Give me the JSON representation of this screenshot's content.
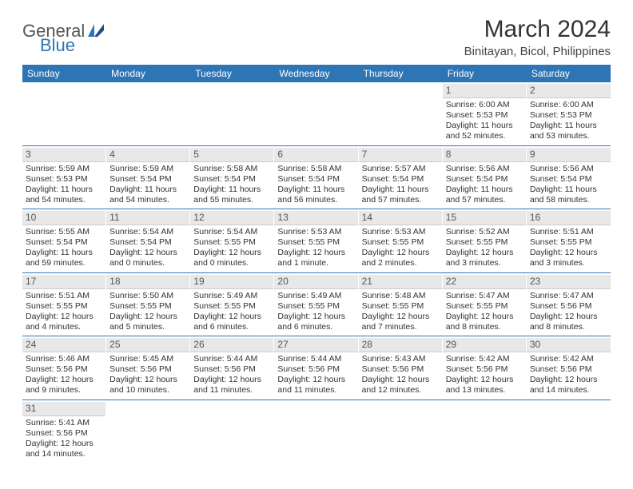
{
  "logo": {
    "text1": "General",
    "text2": "Blue"
  },
  "title": "March 2024",
  "location": "Binitayan, Bicol, Philippines",
  "colors": {
    "header_bg": "#2e75b5",
    "header_text": "#ffffff",
    "date_bg": "#e8e8e8",
    "row_border": "#2e75b5"
  },
  "day_names": [
    "Sunday",
    "Monday",
    "Tuesday",
    "Wednesday",
    "Thursday",
    "Friday",
    "Saturday"
  ],
  "weeks": [
    [
      {
        "date": "",
        "sunrise": "",
        "sunset": "",
        "daylight": ""
      },
      {
        "date": "",
        "sunrise": "",
        "sunset": "",
        "daylight": ""
      },
      {
        "date": "",
        "sunrise": "",
        "sunset": "",
        "daylight": ""
      },
      {
        "date": "",
        "sunrise": "",
        "sunset": "",
        "daylight": ""
      },
      {
        "date": "",
        "sunrise": "",
        "sunset": "",
        "daylight": ""
      },
      {
        "date": "1",
        "sunrise": "Sunrise: 6:00 AM",
        "sunset": "Sunset: 5:53 PM",
        "daylight": "Daylight: 11 hours and 52 minutes."
      },
      {
        "date": "2",
        "sunrise": "Sunrise: 6:00 AM",
        "sunset": "Sunset: 5:53 PM",
        "daylight": "Daylight: 11 hours and 53 minutes."
      }
    ],
    [
      {
        "date": "3",
        "sunrise": "Sunrise: 5:59 AM",
        "sunset": "Sunset: 5:53 PM",
        "daylight": "Daylight: 11 hours and 54 minutes."
      },
      {
        "date": "4",
        "sunrise": "Sunrise: 5:59 AM",
        "sunset": "Sunset: 5:54 PM",
        "daylight": "Daylight: 11 hours and 54 minutes."
      },
      {
        "date": "5",
        "sunrise": "Sunrise: 5:58 AM",
        "sunset": "Sunset: 5:54 PM",
        "daylight": "Daylight: 11 hours and 55 minutes."
      },
      {
        "date": "6",
        "sunrise": "Sunrise: 5:58 AM",
        "sunset": "Sunset: 5:54 PM",
        "daylight": "Daylight: 11 hours and 56 minutes."
      },
      {
        "date": "7",
        "sunrise": "Sunrise: 5:57 AM",
        "sunset": "Sunset: 5:54 PM",
        "daylight": "Daylight: 11 hours and 57 minutes."
      },
      {
        "date": "8",
        "sunrise": "Sunrise: 5:56 AM",
        "sunset": "Sunset: 5:54 PM",
        "daylight": "Daylight: 11 hours and 57 minutes."
      },
      {
        "date": "9",
        "sunrise": "Sunrise: 5:56 AM",
        "sunset": "Sunset: 5:54 PM",
        "daylight": "Daylight: 11 hours and 58 minutes."
      }
    ],
    [
      {
        "date": "10",
        "sunrise": "Sunrise: 5:55 AM",
        "sunset": "Sunset: 5:54 PM",
        "daylight": "Daylight: 11 hours and 59 minutes."
      },
      {
        "date": "11",
        "sunrise": "Sunrise: 5:54 AM",
        "sunset": "Sunset: 5:54 PM",
        "daylight": "Daylight: 12 hours and 0 minutes."
      },
      {
        "date": "12",
        "sunrise": "Sunrise: 5:54 AM",
        "sunset": "Sunset: 5:55 PM",
        "daylight": "Daylight: 12 hours and 0 minutes."
      },
      {
        "date": "13",
        "sunrise": "Sunrise: 5:53 AM",
        "sunset": "Sunset: 5:55 PM",
        "daylight": "Daylight: 12 hours and 1 minute."
      },
      {
        "date": "14",
        "sunrise": "Sunrise: 5:53 AM",
        "sunset": "Sunset: 5:55 PM",
        "daylight": "Daylight: 12 hours and 2 minutes."
      },
      {
        "date": "15",
        "sunrise": "Sunrise: 5:52 AM",
        "sunset": "Sunset: 5:55 PM",
        "daylight": "Daylight: 12 hours and 3 minutes."
      },
      {
        "date": "16",
        "sunrise": "Sunrise: 5:51 AM",
        "sunset": "Sunset: 5:55 PM",
        "daylight": "Daylight: 12 hours and 3 minutes."
      }
    ],
    [
      {
        "date": "17",
        "sunrise": "Sunrise: 5:51 AM",
        "sunset": "Sunset: 5:55 PM",
        "daylight": "Daylight: 12 hours and 4 minutes."
      },
      {
        "date": "18",
        "sunrise": "Sunrise: 5:50 AM",
        "sunset": "Sunset: 5:55 PM",
        "daylight": "Daylight: 12 hours and 5 minutes."
      },
      {
        "date": "19",
        "sunrise": "Sunrise: 5:49 AM",
        "sunset": "Sunset: 5:55 PM",
        "daylight": "Daylight: 12 hours and 6 minutes."
      },
      {
        "date": "20",
        "sunrise": "Sunrise: 5:49 AM",
        "sunset": "Sunset: 5:55 PM",
        "daylight": "Daylight: 12 hours and 6 minutes."
      },
      {
        "date": "21",
        "sunrise": "Sunrise: 5:48 AM",
        "sunset": "Sunset: 5:55 PM",
        "daylight": "Daylight: 12 hours and 7 minutes."
      },
      {
        "date": "22",
        "sunrise": "Sunrise: 5:47 AM",
        "sunset": "Sunset: 5:55 PM",
        "daylight": "Daylight: 12 hours and 8 minutes."
      },
      {
        "date": "23",
        "sunrise": "Sunrise: 5:47 AM",
        "sunset": "Sunset: 5:56 PM",
        "daylight": "Daylight: 12 hours and 8 minutes."
      }
    ],
    [
      {
        "date": "24",
        "sunrise": "Sunrise: 5:46 AM",
        "sunset": "Sunset: 5:56 PM",
        "daylight": "Daylight: 12 hours and 9 minutes."
      },
      {
        "date": "25",
        "sunrise": "Sunrise: 5:45 AM",
        "sunset": "Sunset: 5:56 PM",
        "daylight": "Daylight: 12 hours and 10 minutes."
      },
      {
        "date": "26",
        "sunrise": "Sunrise: 5:44 AM",
        "sunset": "Sunset: 5:56 PM",
        "daylight": "Daylight: 12 hours and 11 minutes."
      },
      {
        "date": "27",
        "sunrise": "Sunrise: 5:44 AM",
        "sunset": "Sunset: 5:56 PM",
        "daylight": "Daylight: 12 hours and 11 minutes."
      },
      {
        "date": "28",
        "sunrise": "Sunrise: 5:43 AM",
        "sunset": "Sunset: 5:56 PM",
        "daylight": "Daylight: 12 hours and 12 minutes."
      },
      {
        "date": "29",
        "sunrise": "Sunrise: 5:42 AM",
        "sunset": "Sunset: 5:56 PM",
        "daylight": "Daylight: 12 hours and 13 minutes."
      },
      {
        "date": "30",
        "sunrise": "Sunrise: 5:42 AM",
        "sunset": "Sunset: 5:56 PM",
        "daylight": "Daylight: 12 hours and 14 minutes."
      }
    ],
    [
      {
        "date": "31",
        "sunrise": "Sunrise: 5:41 AM",
        "sunset": "Sunset: 5:56 PM",
        "daylight": "Daylight: 12 hours and 14 minutes."
      },
      {
        "date": "",
        "sunrise": "",
        "sunset": "",
        "daylight": ""
      },
      {
        "date": "",
        "sunrise": "",
        "sunset": "",
        "daylight": ""
      },
      {
        "date": "",
        "sunrise": "",
        "sunset": "",
        "daylight": ""
      },
      {
        "date": "",
        "sunrise": "",
        "sunset": "",
        "daylight": ""
      },
      {
        "date": "",
        "sunrise": "",
        "sunset": "",
        "daylight": ""
      },
      {
        "date": "",
        "sunrise": "",
        "sunset": "",
        "daylight": ""
      }
    ]
  ]
}
